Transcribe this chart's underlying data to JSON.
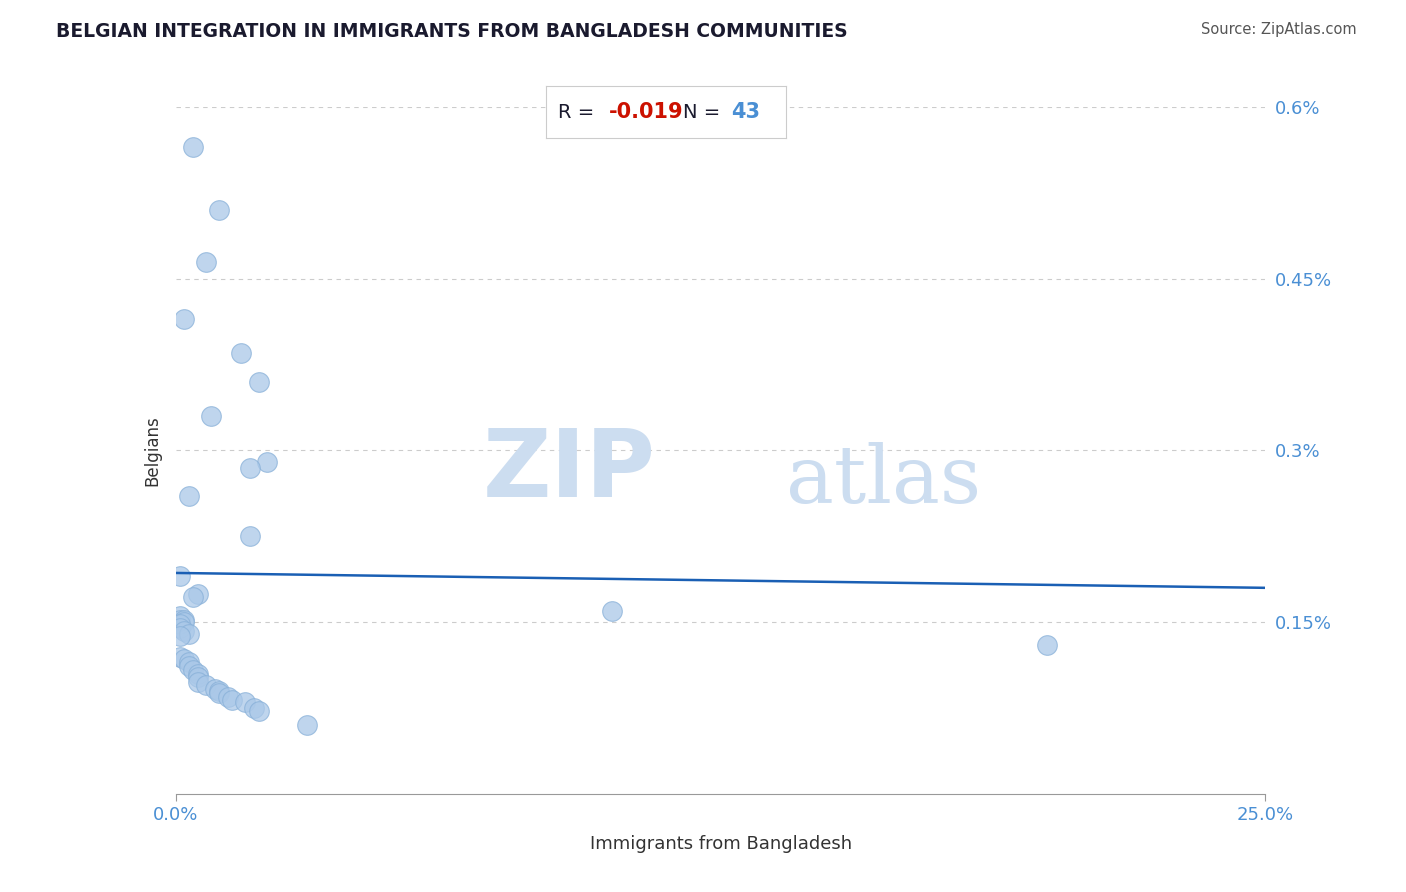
{
  "title": "BELGIAN INTEGRATION IN IMMIGRANTS FROM BANGLADESH COMMUNITIES",
  "source": "Source: ZipAtlas.com",
  "xlabel": "Immigrants from Bangladesh",
  "ylabel": "Belgians",
  "R": -0.019,
  "N": 43,
  "xlim": [
    0.0,
    0.25
  ],
  "ylim": [
    0.0,
    0.006
  ],
  "xtick_labels": [
    "0.0%",
    "25.0%"
  ],
  "ytick_labels": [
    "0.15%",
    "0.3%",
    "0.45%",
    "0.6%"
  ],
  "ytick_vals": [
    0.0015,
    0.003,
    0.0045,
    0.006
  ],
  "xtick_vals": [
    0.0,
    0.25
  ],
  "scatter_x": [
    0.004,
    0.01,
    0.007,
    0.002,
    0.015,
    0.019,
    0.008,
    0.021,
    0.017,
    0.003,
    0.017,
    0.001,
    0.005,
    0.004,
    0.001,
    0.001,
    0.002,
    0.002,
    0.001,
    0.001,
    0.002,
    0.003,
    0.001,
    0.001,
    0.002,
    0.003,
    0.003,
    0.004,
    0.005,
    0.005,
    0.005,
    0.007,
    0.009,
    0.01,
    0.01,
    0.012,
    0.013,
    0.016,
    0.018,
    0.019,
    0.03,
    0.1,
    0.2
  ],
  "scatter_y": [
    0.00565,
    0.0051,
    0.00465,
    0.00415,
    0.00385,
    0.0036,
    0.0033,
    0.0029,
    0.00285,
    0.0026,
    0.00225,
    0.0019,
    0.00175,
    0.00172,
    0.00155,
    0.00152,
    0.00152,
    0.0015,
    0.00148,
    0.00145,
    0.00142,
    0.0014,
    0.00138,
    0.0012,
    0.00118,
    0.00115,
    0.00112,
    0.00108,
    0.00105,
    0.00102,
    0.00098,
    0.00095,
    0.00092,
    0.0009,
    0.00088,
    0.00085,
    0.00082,
    0.0008,
    0.00075,
    0.00072,
    0.0006,
    0.0016,
    0.0013
  ],
  "scatter_color": "#aac8e8",
  "scatter_edge_color": "#88b0d8",
  "line_color": "#1a5fb4",
  "regression_y_start": 0.00193,
  "regression_y_end": 0.0018,
  "watermark_zip": "ZIP",
  "watermark_atlas": "atlas",
  "watermark_color": "#ccddf0",
  "title_color": "#1a1a2e",
  "axis_label_color": "#333333",
  "tick_label_color": "#4a8fd4",
  "grid_color": "#cccccc",
  "source_color": "#555555",
  "annotation_bg": "#ffffff",
  "annotation_border": "#cccccc",
  "r_text_color": "#1a1a2e",
  "r_value_color": "#cc1100",
  "n_text_color": "#1a1a2e",
  "n_value_color": "#4a8fd4"
}
